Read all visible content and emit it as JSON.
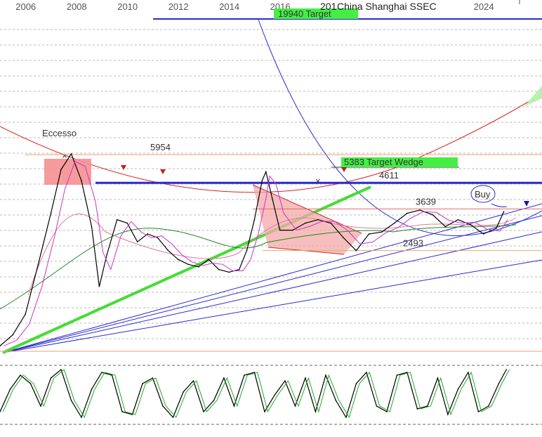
{
  "chart_data": {
    "type": "line",
    "title": "China Shanghai SSEC",
    "title_prefix": "201",
    "x_axis": {
      "range": [
        2005.0,
        2026.3
      ],
      "ticks": [
        2006,
        2008,
        2010,
        2012,
        2014,
        2016,
        2018,
        2020,
        2022,
        2024
      ],
      "tick_labels": [
        "2006",
        "2008",
        "2010",
        "2012",
        "2014",
        "2016",
        "",
        "",
        "",
        "2024"
      ]
    },
    "grid": true,
    "levels": [
      {
        "name": "5954",
        "label": "5954",
        "value": 5954,
        "color": "#f0a070"
      },
      {
        "name": "4611",
        "label": "4611",
        "value": 4611,
        "color": "#2a2ad0"
      },
      {
        "name": "3639",
        "label": "3639",
        "value": 3639,
        "color": "#e06a6a"
      },
      {
        "name": "2493",
        "label": "2493",
        "value": 2493,
        "color": "#e8a86a"
      }
    ],
    "annotations": {
      "target_top": "19940 Target",
      "target_wedge": "5383 Target Wedge",
      "eccesso": "Eccesso",
      "buy": "Buy"
    },
    "series": [
      {
        "name": "",
        "role": "price",
        "color": "#000000",
        "x": [
          2005.0,
          2005.5,
          2006.0,
          2006.5,
          2007.0,
          2007.4,
          2007.8,
          2008.2,
          2008.6,
          2008.9,
          2009.2,
          2009.6,
          2010.0,
          2010.4,
          2010.8,
          2011.2,
          2011.6,
          2012.0,
          2012.4,
          2012.8,
          2013.2,
          2013.6,
          2014.0,
          2014.4,
          2014.7,
          2015.0,
          2015.3,
          2015.45,
          2015.7,
          2016.0,
          2016.5,
          2017.0,
          2017.5,
          2018.0,
          2018.5,
          2019.0,
          2019.5,
          2020.0,
          2020.5,
          2021.0,
          2021.5,
          2022.0,
          2022.5,
          2023.0,
          2023.5,
          2024.0,
          2024.5,
          2024.8
        ],
        "values": [
          1050,
          1160,
          1400,
          2200,
          3500,
          5200,
          6000,
          4700,
          3100,
          1800,
          2400,
          3300,
          3200,
          2700,
          2900,
          2800,
          2500,
          2300,
          2200,
          2150,
          2300,
          2100,
          2050,
          2100,
          2500,
          3300,
          4700,
          5100,
          4000,
          3000,
          3000,
          3200,
          3300,
          3200,
          2800,
          2493,
          2900,
          2950,
          3200,
          3500,
          3600,
          3450,
          3100,
          3300,
          3150,
          2900,
          3050,
          3550
        ]
      },
      {
        "name": "",
        "role": "oscillator",
        "color": "#000000",
        "x": [
          2005.0,
          2005.4,
          2005.8,
          2006.2,
          2006.6,
          2007.0,
          2007.4,
          2007.8,
          2008.2,
          2008.6,
          2009.0,
          2009.4,
          2009.8,
          2010.2,
          2010.6,
          2011.0,
          2011.4,
          2011.8,
          2012.2,
          2012.6,
          2013.0,
          2013.4,
          2013.8,
          2014.2,
          2014.6,
          2015.0,
          2015.4,
          2015.8,
          2016.2,
          2016.6,
          2017.0,
          2017.4,
          2017.8,
          2018.2,
          2018.6,
          2019.0,
          2019.4,
          2019.8,
          2020.2,
          2020.6,
          2021.0,
          2021.4,
          2021.8,
          2022.2,
          2022.6,
          2023.0,
          2023.4,
          2023.8,
          2024.2,
          2024.6,
          2024.9
        ],
        "values": [
          20,
          60,
          85,
          70,
          30,
          80,
          95,
          40,
          10,
          60,
          90,
          85,
          20,
          15,
          70,
          80,
          30,
          10,
          55,
          75,
          20,
          40,
          80,
          30,
          85,
          90,
          20,
          50,
          75,
          30,
          80,
          20,
          85,
          40,
          10,
          70,
          90,
          30,
          20,
          85,
          90,
          25,
          30,
          80,
          15,
          60,
          90,
          20,
          30,
          70,
          95
        ]
      }
    ]
  }
}
